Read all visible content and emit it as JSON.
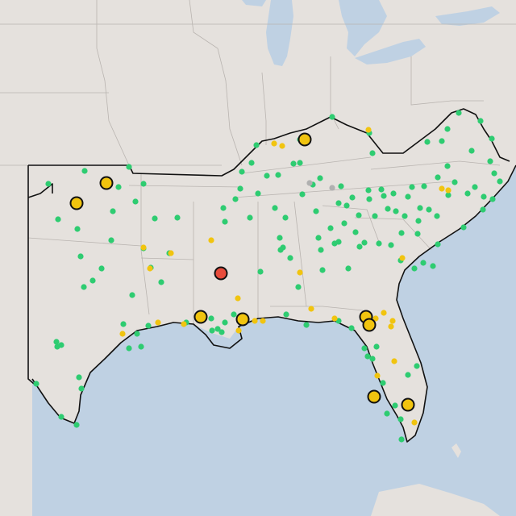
{
  "map": {
    "colors": {
      "land": "#e5e1dd",
      "water": "#bfd1e3",
      "state_border": "#b9b4b0",
      "region_outline": "#111111"
    },
    "marker_styles": {
      "green": {
        "fill": "#2ecc71",
        "label": ""
      },
      "yellow": {
        "fill": "#f1c40f",
        "label": ""
      },
      "gray": {
        "fill": "#b0b0b0",
        "label": ""
      },
      "yellow_large": {
        "fill": "#f1c40f",
        "stroke": "#111111",
        "label": ""
      },
      "red_large": {
        "fill": "#e74c3c",
        "stroke": "#111111",
        "label": ""
      }
    },
    "large_markers": [
      {
        "type": "red_large",
        "id": "central-mississippi"
      },
      {
        "type": "yellow_large",
        "id": "kentucky-north"
      },
      {
        "type": "yellow_large",
        "id": "oklahoma-northeast"
      },
      {
        "type": "yellow_large",
        "id": "oklahoma-central"
      },
      {
        "type": "yellow_large",
        "id": "baton-rouge"
      },
      {
        "type": "yellow_large",
        "id": "new-orleans"
      },
      {
        "type": "yellow_large",
        "id": "jacksonville-1"
      },
      {
        "type": "yellow_large",
        "id": "jacksonville-2"
      },
      {
        "type": "yellow_large",
        "id": "tampa"
      },
      {
        "type": "yellow_large",
        "id": "west-palm-beach"
      }
    ]
  }
}
